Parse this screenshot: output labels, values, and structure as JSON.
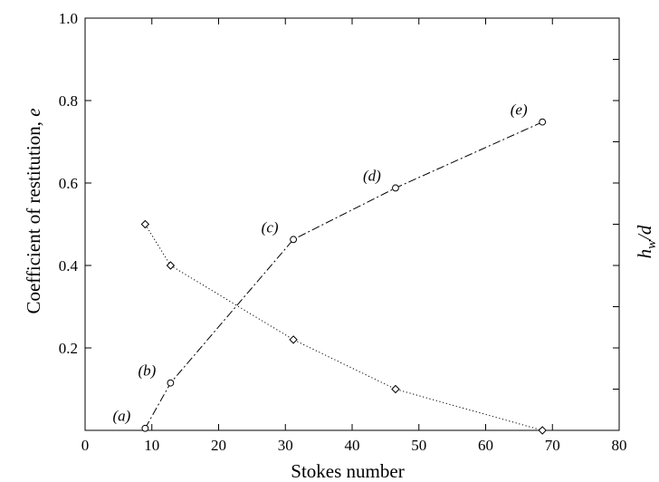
{
  "chart_data": {
    "type": "line",
    "xlabel": "Stokes number",
    "ylabel": "Coefficient of restitution, e",
    "ylabel_parts": {
      "main": "Coefficient of restitution, ",
      "var": "e"
    },
    "y2label_parts": {
      "h": "h",
      "sub": "w",
      "rest": "/d"
    },
    "xlim": [
      0,
      80
    ],
    "ylim": [
      0,
      1.0
    ],
    "xticks": [
      0,
      10,
      20,
      30,
      40,
      50,
      60,
      70,
      80
    ],
    "xtick_labels": [
      "0",
      "10",
      "20",
      "30",
      "40",
      "50",
      "60",
      "70",
      "80"
    ],
    "yticks": [
      0.2,
      0.4,
      0.6,
      0.8,
      1.0
    ],
    "ytick_labels": [
      "0.2",
      "0.4",
      "0.6",
      "0.8",
      "1.0"
    ],
    "grid": false,
    "series": [
      {
        "marker": "circle",
        "linestyle": "dashdot",
        "x": [
          9,
          12.8,
          31.2,
          46.5,
          68.5
        ],
        "y": [
          0.005,
          0.115,
          0.463,
          0.588,
          0.748
        ],
        "point_labels": [
          "(a)",
          "(b)",
          "(c)",
          "(d)",
          "(e)"
        ]
      },
      {
        "marker": "diamond",
        "linestyle": "dotted",
        "x": [
          9,
          12.8,
          31.2,
          46.5,
          68.5
        ],
        "y": [
          0.5,
          0.4,
          0.22,
          0.1,
          0.0
        ]
      }
    ]
  }
}
